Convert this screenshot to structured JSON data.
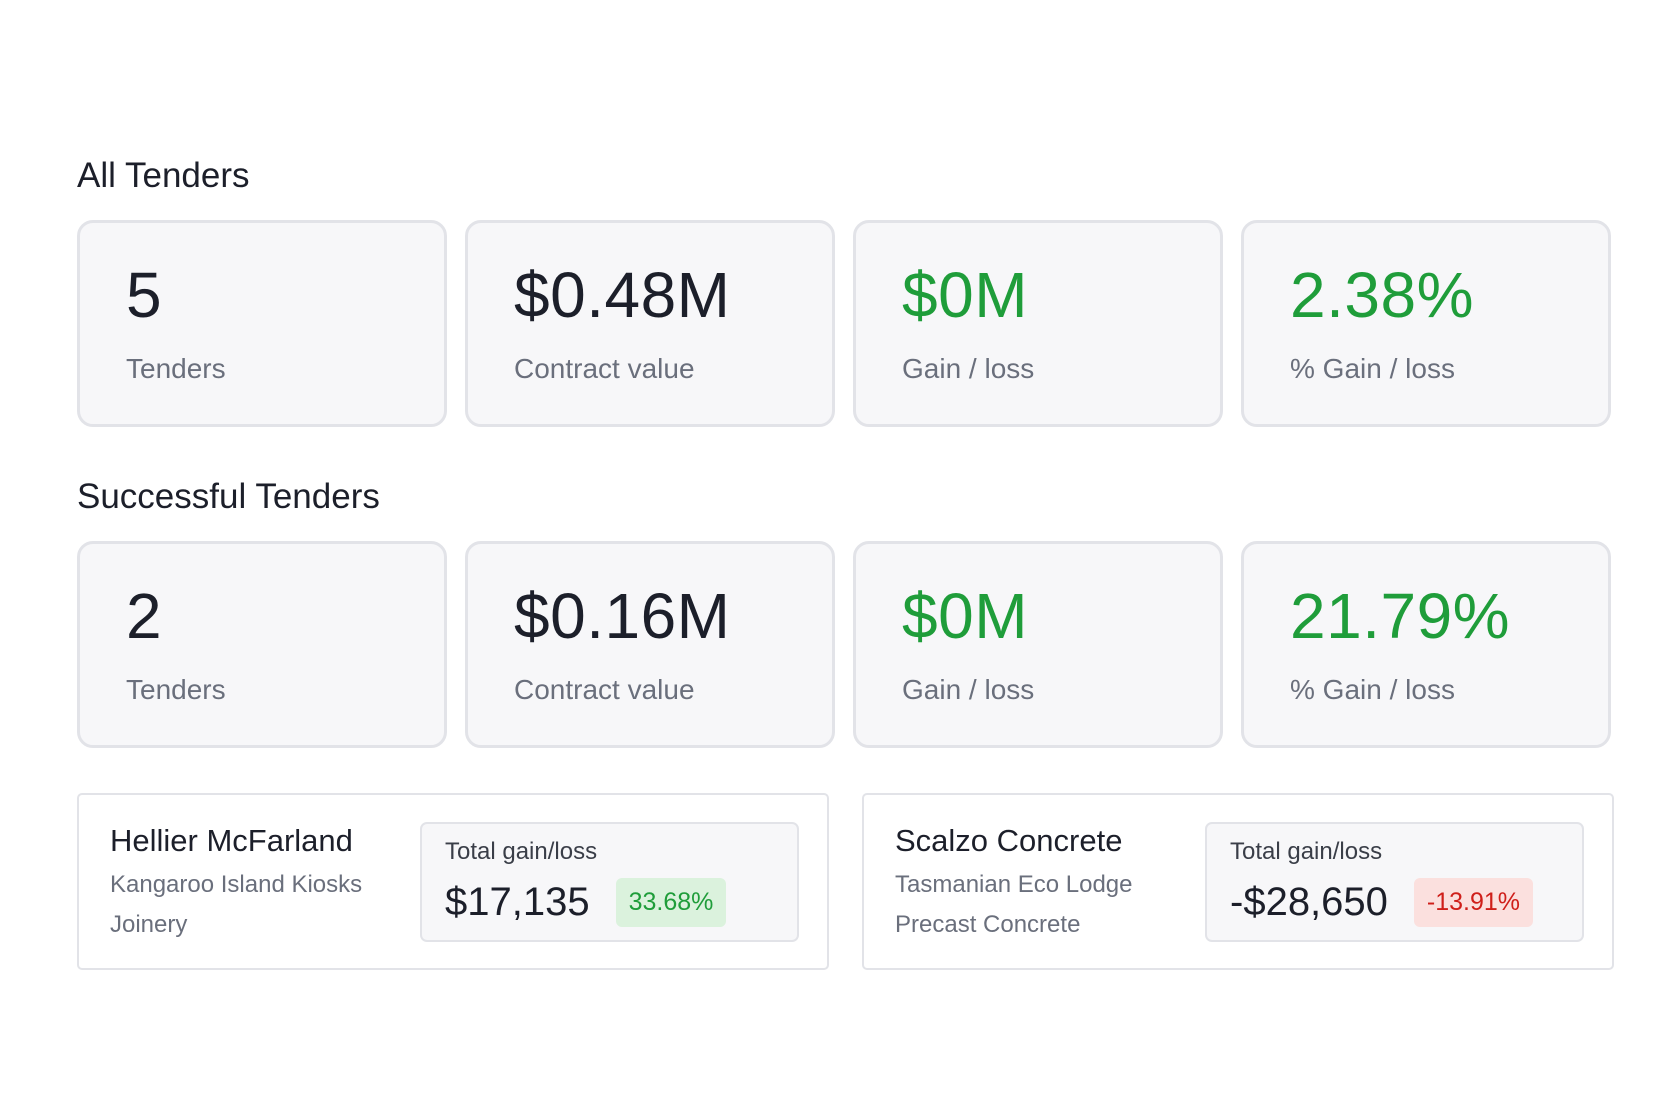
{
  "sections": {
    "all": {
      "title": "All Tenders",
      "stats": [
        {
          "value": "5",
          "label": "Tenders",
          "tone": "neutral"
        },
        {
          "value": "$0.48M",
          "label": "Contract value",
          "tone": "neutral"
        },
        {
          "value": "$0M",
          "label": "Gain / loss",
          "tone": "positive"
        },
        {
          "value": "2.38%",
          "label": "% Gain / loss",
          "tone": "positive"
        }
      ]
    },
    "successful": {
      "title": "Successful Tenders",
      "stats": [
        {
          "value": "2",
          "label": "Tenders",
          "tone": "neutral"
        },
        {
          "value": "$0.16M",
          "label": "Contract value",
          "tone": "neutral"
        },
        {
          "value": "$0M",
          "label": "Gain / loss",
          "tone": "positive"
        },
        {
          "value": "21.79%",
          "label": "% Gain / loss",
          "tone": "positive"
        }
      ]
    }
  },
  "tenders": [
    {
      "company": "Hellier McFarland",
      "project": "Kangaroo Island Kiosks",
      "trade": "Joinery",
      "gain_label": "Total gain/loss",
      "amount": "$17,135",
      "percent": "33.68%",
      "direction": "up"
    },
    {
      "company": "Scalzo Concrete",
      "project": "Tasmanian Eco Lodge",
      "trade": "Precast Concrete",
      "gain_label": "Total gain/loss",
      "amount": "-$28,650",
      "percent": "-13.91%",
      "direction": "down"
    }
  ],
  "colors": {
    "positive": "#1f9d3a",
    "negative": "#cf1f1a",
    "positive_bg": "#dbf2dd",
    "negative_bg": "#fbe0de",
    "text": "#1c1f2a",
    "muted": "#6a6f7c"
  }
}
